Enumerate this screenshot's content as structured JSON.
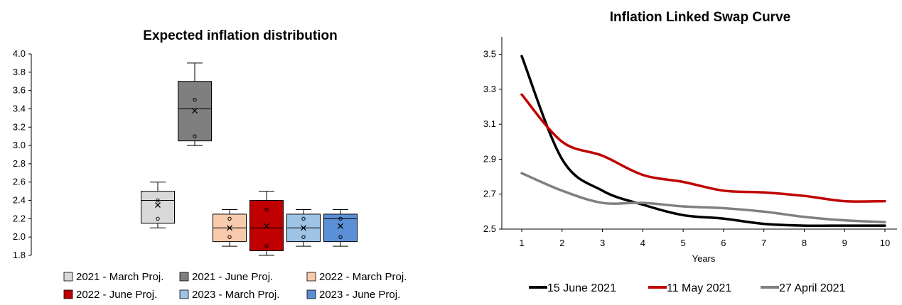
{
  "chart_data": [
    {
      "type": "box",
      "title": "Expected inflation distribution",
      "ylim": [
        1.8,
        4.0
      ],
      "yticks": [
        "4.0",
        "3.8",
        "3.6",
        "3.4",
        "3.2",
        "3.0",
        "2.8",
        "2.6",
        "2.4",
        "2.2",
        "2.0",
        "1.8"
      ],
      "grid": false,
      "legend_position": "bottom",
      "series": [
        {
          "name": "2021 - March Proj.",
          "color": "#d9d9d9",
          "min": 2.1,
          "q1": 2.15,
          "median": 2.4,
          "q3": 2.5,
          "max": 2.6,
          "mean": 2.35,
          "points": [
            2.4,
            2.2
          ]
        },
        {
          "name": "2021 - June Proj.",
          "color": "#7f7f7f",
          "min": 3.0,
          "q1": 3.05,
          "median": 3.4,
          "q3": 3.7,
          "max": 3.9,
          "mean": 3.38,
          "points": [
            3.5,
            3.1
          ]
        },
        {
          "name": "2022 - March Proj.",
          "color": "#f8cbad",
          "min": 1.9,
          "q1": 1.95,
          "median": 2.1,
          "q3": 2.25,
          "max": 2.3,
          "mean": 2.1,
          "points": [
            2.2,
            2.0
          ]
        },
        {
          "name": "2022 - June Proj.",
          "color": "#c00000",
          "min": 1.8,
          "q1": 1.85,
          "median": 2.1,
          "q3": 2.4,
          "max": 2.5,
          "mean": 2.12,
          "points": [
            2.3,
            1.9
          ]
        },
        {
          "name": "2023 - March Proj.",
          "color": "#9dc3e6",
          "min": 1.9,
          "q1": 1.95,
          "median": 2.1,
          "q3": 2.25,
          "max": 2.3,
          "mean": 2.1,
          "points": [
            2.2,
            2.0
          ]
        },
        {
          "name": "2023 - June Proj.",
          "color": "#5b8fd6",
          "min": 1.9,
          "q1": 1.95,
          "median": 2.2,
          "q3": 2.25,
          "max": 2.3,
          "mean": 2.12,
          "points": [
            2.2,
            2.0
          ]
        }
      ]
    },
    {
      "type": "line",
      "title": "Inflation Linked Swap Curve",
      "xlabel": "Years",
      "ylabel": "",
      "x": [
        1,
        2,
        3,
        4,
        5,
        6,
        7,
        8,
        9,
        10
      ],
      "ylim": [
        2.5,
        3.6
      ],
      "yticks": [
        "3.5",
        "3.3",
        "3.1",
        "2.9",
        "2.7",
        "2.5"
      ],
      "grid": false,
      "legend_position": "bottom",
      "series": [
        {
          "name": "15 June 2021",
          "color": "#000000",
          "values": [
            3.49,
            2.9,
            2.72,
            2.64,
            2.58,
            2.56,
            2.53,
            2.52,
            2.52,
            2.52
          ]
        },
        {
          "name": "11 May 2021",
          "color": "#c00000",
          "values": [
            3.27,
            3.0,
            2.92,
            2.81,
            2.77,
            2.72,
            2.71,
            2.69,
            2.66,
            2.66
          ]
        },
        {
          "name": "27 April 2021",
          "color": "#808080",
          "values": [
            2.82,
            2.72,
            2.65,
            2.65,
            2.63,
            2.62,
            2.6,
            2.57,
            2.55,
            2.54
          ]
        }
      ]
    }
  ]
}
